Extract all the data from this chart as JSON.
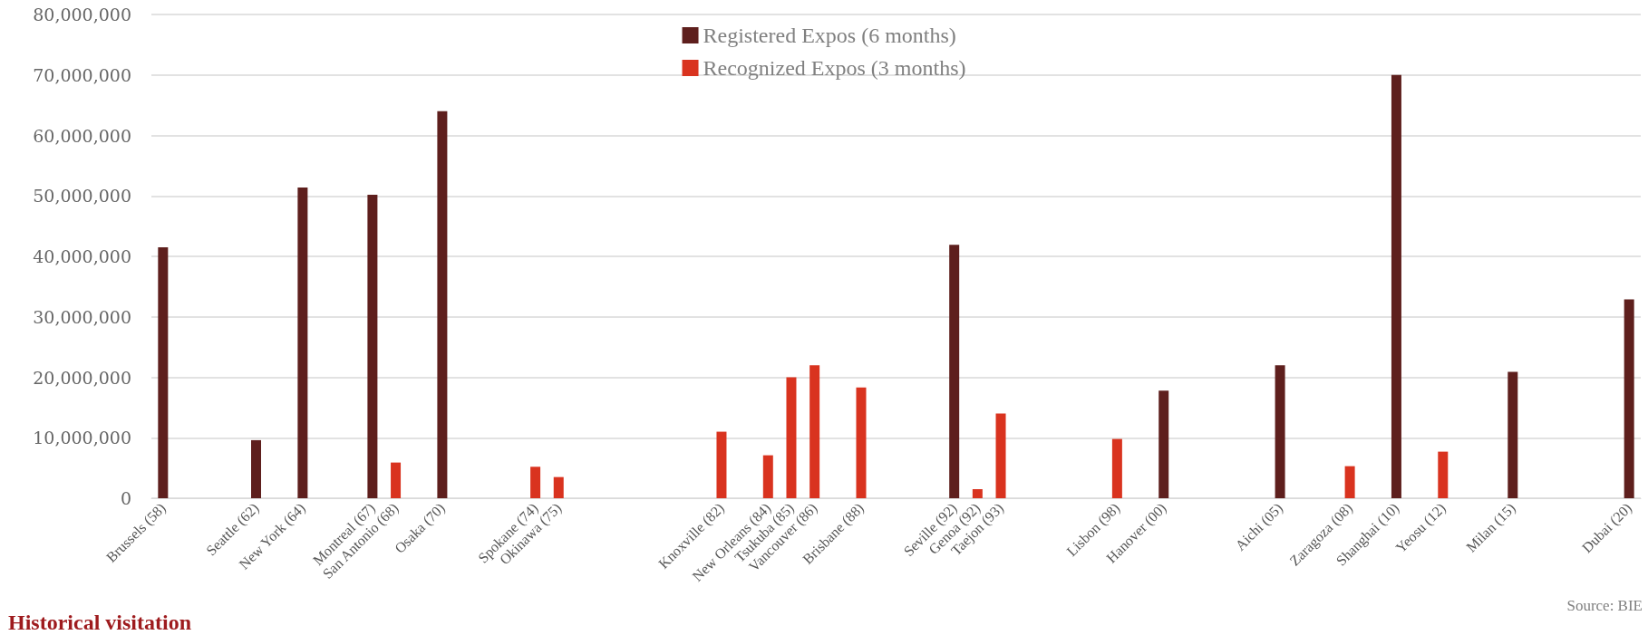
{
  "chart_data": {
    "type": "bar",
    "title": "Historical visitation",
    "categories": [
      "Brussels (58)",
      null,
      null,
      null,
      "Seattle (62)",
      null,
      "New York (64)",
      null,
      null,
      "Montreal (67)",
      "San Antonio (68)",
      null,
      "Osaka (70)",
      null,
      null,
      null,
      "Spokane (74)",
      "Okinawa (75)",
      null,
      null,
      null,
      null,
      null,
      null,
      "Knoxville (82)",
      null,
      "New Orleans (84)",
      "Tsukuba (85)",
      "Vancouver (86)",
      null,
      "Brisbane (88)",
      null,
      null,
      null,
      "Seville (92)",
      "Genoa (92)",
      "Taejon (93)",
      null,
      null,
      null,
      null,
      "Lisbon (98)",
      null,
      "Hanover (00)",
      null,
      null,
      null,
      null,
      "Aichi (05)",
      null,
      null,
      "Zaragoza (08)",
      null,
      "Shanghai (10)",
      null,
      "Yeosu (12)",
      null,
      null,
      "Milan (15)",
      null,
      null,
      null,
      null,
      "Dubai (20)"
    ],
    "series": [
      {
        "name": "Registered Expos (6 months)",
        "color": "#5e1f1d",
        "values": [
          41500000,
          null,
          null,
          null,
          9600000,
          null,
          51400000,
          null,
          null,
          50200000,
          null,
          null,
          64000000,
          null,
          null,
          null,
          null,
          null,
          null,
          null,
          null,
          null,
          null,
          null,
          null,
          null,
          null,
          null,
          null,
          null,
          null,
          null,
          null,
          null,
          41900000,
          null,
          null,
          null,
          null,
          null,
          null,
          null,
          null,
          17800000,
          null,
          null,
          null,
          null,
          22000000,
          null,
          null,
          null,
          null,
          70000000,
          null,
          null,
          null,
          null,
          20900000,
          null,
          null,
          null,
          null,
          32900000
        ]
      },
      {
        "name": "Recognized Expos (3 months)",
        "color": "#d9331f",
        "values": [
          null,
          null,
          null,
          null,
          null,
          null,
          null,
          null,
          null,
          null,
          5900000,
          null,
          null,
          null,
          null,
          null,
          5200000,
          3500000,
          null,
          null,
          null,
          null,
          null,
          null,
          11000000,
          null,
          7100000,
          20000000,
          22000000,
          null,
          18300000,
          null,
          null,
          null,
          null,
          1500000,
          14000000,
          null,
          null,
          null,
          null,
          9800000,
          null,
          null,
          null,
          null,
          null,
          null,
          null,
          null,
          null,
          5300000,
          null,
          null,
          null,
          7700000,
          null,
          null,
          null,
          null,
          null,
          null,
          null,
          null
        ]
      }
    ],
    "ylim": [
      0,
      80000000
    ],
    "yticks": [
      0,
      {
        "value": 10000000,
        "label": "10,000,000"
      },
      {
        "value": 20000000,
        "label": "20,000,000"
      },
      {
        "value": 30000000,
        "label": "30,000,000"
      },
      {
        "value": 40000000,
        "label": "40,000,000"
      },
      {
        "value": 50000000,
        "label": "50,000,000"
      },
      {
        "value": 60000000,
        "label": "60,000,000"
      },
      {
        "value": 70000000,
        "label": "70,000,000"
      },
      {
        "value": 80000000,
        "label": "80,000,000"
      }
    ],
    "grid": "y",
    "legend": "top",
    "annotations": [
      "Source: BIE"
    ]
  }
}
